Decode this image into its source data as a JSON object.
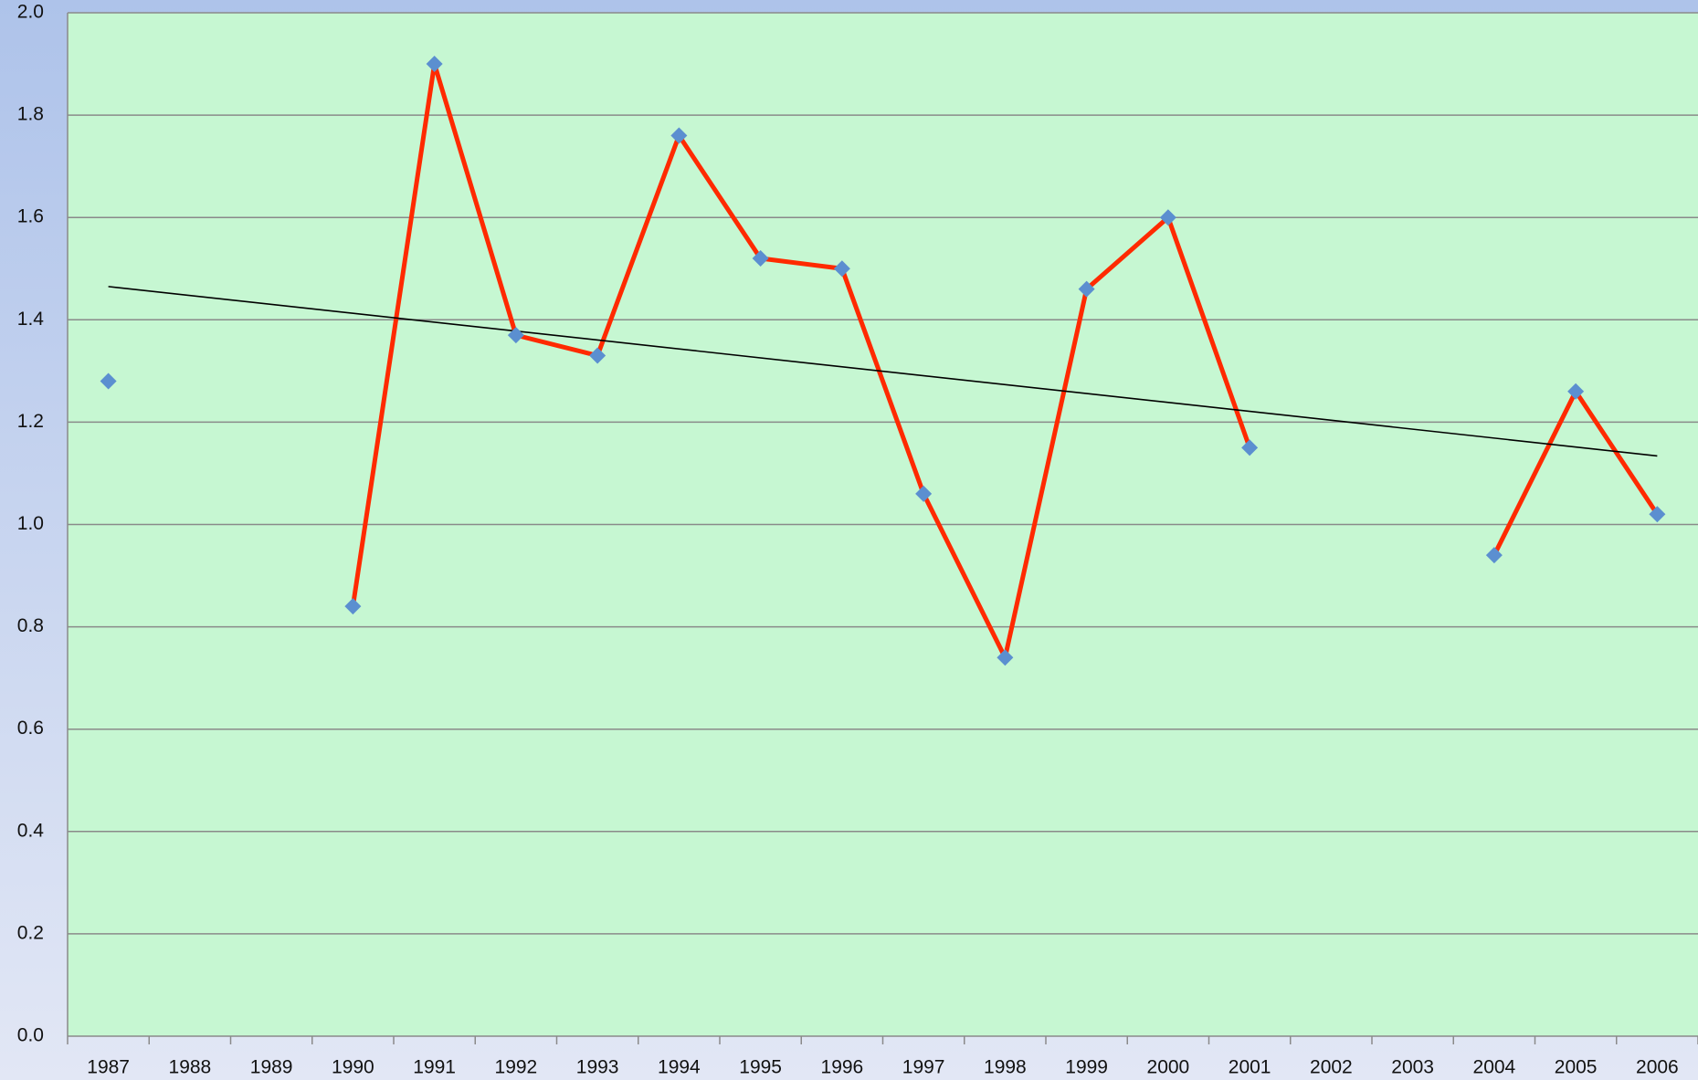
{
  "chart_data": {
    "type": "line",
    "categories": [
      "1987",
      "1988",
      "1989",
      "1990",
      "1991",
      "1992",
      "1993",
      "1994",
      "1995",
      "1996",
      "1997",
      "1998",
      "1999",
      "2000",
      "2001",
      "2002",
      "2003",
      "2004",
      "2005",
      "2006"
    ],
    "values": [
      1.28,
      null,
      null,
      0.84,
      1.9,
      1.37,
      1.33,
      1.76,
      1.52,
      1.5,
      1.06,
      0.74,
      1.46,
      1.6,
      1.15,
      null,
      null,
      0.94,
      1.26,
      1.02
    ],
    "color": "#ff2a00",
    "marker_color": "#5b8fd0",
    "trendline": {
      "start": 1.465,
      "end": 1.134,
      "color": "#000000"
    },
    "ylim": [
      0,
      2.0
    ],
    "yticks": [
      {
        "value": 0,
        "label": "0.0"
      },
      0.2,
      0.4,
      0.6,
      0.8,
      {
        "value": 1,
        "label": "1.0"
      },
      1.2,
      1.4,
      1.6,
      1.8,
      {
        "value": 2,
        "label": "2.0"
      }
    ],
    "grid": true
  }
}
